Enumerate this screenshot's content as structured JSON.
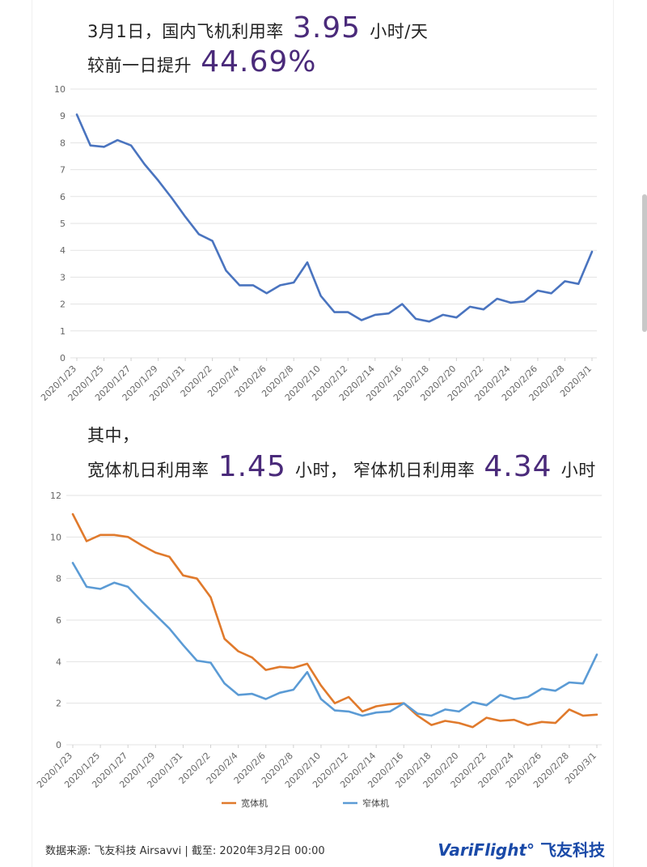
{
  "header": {
    "line1_prefix": "3月1日，国内飞机利用率",
    "line1_value": "3.95",
    "line1_suffix": "小时/天",
    "line2_prefix": "较前一日提升",
    "line2_value": "44.69%"
  },
  "section2": {
    "intro": "其中，",
    "wide_prefix": "宽体机日利用率",
    "wide_value": "1.45",
    "wide_suffix": "小时，",
    "narrow_prefix": "窄体机日利用率",
    "narrow_value": "4.34",
    "narrow_suffix": "小时"
  },
  "footer": {
    "source": "数据来源: 飞友科技 Airsavvi   |   截至: 2020年3月2日 00:00",
    "brand_en": "VariFlight",
    "brand_cn": "飞友科技"
  },
  "chart_data": [
    {
      "type": "line",
      "x": [
        "2020/1/23",
        "2020/1/24",
        "2020/1/25",
        "2020/1/26",
        "2020/1/27",
        "2020/1/28",
        "2020/1/29",
        "2020/1/30",
        "2020/1/31",
        "2020/2/1",
        "2020/2/2",
        "2020/2/3",
        "2020/2/4",
        "2020/2/5",
        "2020/2/6",
        "2020/2/7",
        "2020/2/8",
        "2020/2/9",
        "2020/2/10",
        "2020/2/11",
        "2020/2/12",
        "2020/2/13",
        "2020/2/14",
        "2020/2/15",
        "2020/2/16",
        "2020/2/17",
        "2020/2/18",
        "2020/2/19",
        "2020/2/20",
        "2020/2/21",
        "2020/2/22",
        "2020/2/23",
        "2020/2/24",
        "2020/2/25",
        "2020/2/26",
        "2020/2/27",
        "2020/2/28",
        "2020/2/29",
        "2020/3/1"
      ],
      "xticks": [
        "2020/1/23",
        "2020/1/25",
        "2020/1/27",
        "2020/1/29",
        "2020/1/31",
        "2020/2/2",
        "2020/2/4",
        "2020/2/6",
        "2020/2/8",
        "2020/2/10",
        "2020/2/12",
        "2020/2/14",
        "2020/2/16",
        "2020/2/18",
        "2020/2/20",
        "2020/2/22",
        "2020/2/24",
        "2020/2/26",
        "2020/2/28",
        "2020/3/1"
      ],
      "series": [
        {
          "color": "#4a74bf",
          "values": [
            9.05,
            7.9,
            7.85,
            8.1,
            7.9,
            7.2,
            6.6,
            5.95,
            5.25,
            4.6,
            4.35,
            3.25,
            2.7,
            2.7,
            2.4,
            2.7,
            2.8,
            3.55,
            2.3,
            1.7,
            1.7,
            1.4,
            1.6,
            1.65,
            2.0,
            1.45,
            1.35,
            1.6,
            1.5,
            1.9,
            1.8,
            2.2,
            2.05,
            2.1,
            2.5,
            2.4,
            2.85,
            2.75,
            3.95
          ]
        }
      ],
      "ylim": [
        0,
        10
      ],
      "yticks": [
        0,
        1,
        2,
        3,
        4,
        5,
        6,
        7,
        8,
        9,
        10
      ],
      "grid": true
    },
    {
      "type": "line",
      "x": [
        "2020/1/23",
        "2020/1/24",
        "2020/1/25",
        "2020/1/26",
        "2020/1/27",
        "2020/1/28",
        "2020/1/29",
        "2020/1/30",
        "2020/1/31",
        "2020/2/1",
        "2020/2/2",
        "2020/2/3",
        "2020/2/4",
        "2020/2/5",
        "2020/2/6",
        "2020/2/7",
        "2020/2/8",
        "2020/2/9",
        "2020/2/10",
        "2020/2/11",
        "2020/2/12",
        "2020/2/13",
        "2020/2/14",
        "2020/2/15",
        "2020/2/16",
        "2020/2/17",
        "2020/2/18",
        "2020/2/19",
        "2020/2/20",
        "2020/2/21",
        "2020/2/22",
        "2020/2/23",
        "2020/2/24",
        "2020/2/25",
        "2020/2/26",
        "2020/2/27",
        "2020/2/28",
        "2020/2/29",
        "2020/3/1"
      ],
      "xticks": [
        "2020/1/23",
        "2020/1/25",
        "2020/1/27",
        "2020/1/29",
        "2020/1/31",
        "2020/2/2",
        "2020/2/4",
        "2020/2/6",
        "2020/2/8",
        "2020/2/10",
        "2020/2/12",
        "2020/2/14",
        "2020/2/16",
        "2020/2/18",
        "2020/2/20",
        "2020/2/22",
        "2020/2/24",
        "2020/2/26",
        "2020/2/28",
        "2020/3/1"
      ],
      "series": [
        {
          "name": "宽体机",
          "color": "#e07a2c",
          "values": [
            11.1,
            9.8,
            10.1,
            10.1,
            10.0,
            9.6,
            9.25,
            9.05,
            8.15,
            8.0,
            7.1,
            5.1,
            4.5,
            4.2,
            3.6,
            3.75,
            3.7,
            3.9,
            2.85,
            2.0,
            2.3,
            1.6,
            1.85,
            1.95,
            2.0,
            1.4,
            0.95,
            1.15,
            1.05,
            0.85,
            1.3,
            1.15,
            1.2,
            0.95,
            1.1,
            1.05,
            1.7,
            1.4,
            1.45
          ]
        },
        {
          "name": "窄体机",
          "color": "#5b9bd5",
          "values": [
            8.75,
            7.6,
            7.5,
            7.8,
            7.6,
            6.9,
            6.25,
            5.6,
            4.8,
            4.05,
            3.95,
            2.95,
            2.4,
            2.45,
            2.2,
            2.5,
            2.65,
            3.5,
            2.2,
            1.65,
            1.6,
            1.4,
            1.55,
            1.6,
            2.0,
            1.5,
            1.4,
            1.7,
            1.6,
            2.05,
            1.9,
            2.4,
            2.2,
            2.3,
            2.7,
            2.6,
            3.0,
            2.95,
            4.34
          ]
        }
      ],
      "ylim": [
        0,
        12
      ],
      "yticks": [
        0,
        2,
        4,
        6,
        8,
        10,
        12
      ],
      "grid": true,
      "legend": "bottom-center"
    }
  ]
}
